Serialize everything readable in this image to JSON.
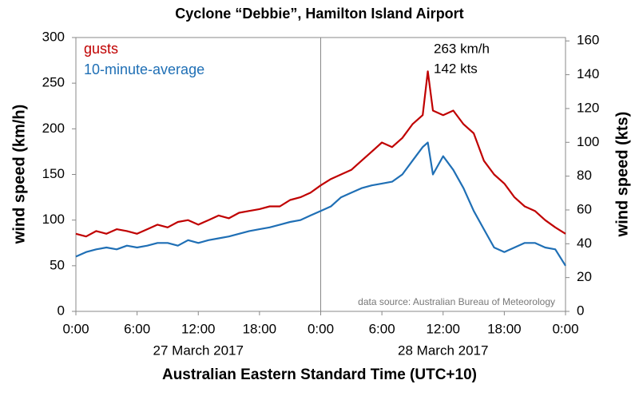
{
  "chart_data": {
    "type": "line",
    "title": "Cyclone “Debbie”, Hamilton Island Airport",
    "xlabel": "Australian Eastern Standard Time (UTC+10)",
    "ylabel": "wind speed (km/h)",
    "y2label": "wind speed (kts)",
    "x_group_labels": [
      "27 March 2017",
      "28 March 2017"
    ],
    "annotations": [
      "263 km/h",
      "142 kts",
      "data source: Australian Bureau of Meteorology"
    ],
    "x": [
      0,
      1,
      2,
      3,
      4,
      5,
      6,
      7,
      8,
      9,
      10,
      11,
      12,
      13,
      14,
      15,
      16,
      17,
      18,
      19,
      20,
      21,
      22,
      23,
      24,
      25,
      26,
      27,
      28,
      29,
      30,
      31,
      32,
      33,
      34,
      34.5,
      35,
      36,
      37,
      38,
      39,
      40,
      41,
      42,
      43,
      44,
      45,
      46,
      47,
      48
    ],
    "series": [
      {
        "name": "gusts",
        "color": "#c00000",
        "values": [
          85,
          82,
          88,
          85,
          90,
          88,
          85,
          90,
          95,
          92,
          98,
          100,
          95,
          100,
          105,
          102,
          108,
          110,
          112,
          115,
          115,
          122,
          125,
          130,
          138,
          145,
          150,
          155,
          165,
          175,
          185,
          180,
          190,
          205,
          215,
          263,
          220,
          215,
          220,
          205,
          195,
          165,
          150,
          140,
          125,
          115,
          110,
          100,
          92,
          85
        ]
      },
      {
        "name": "10-minute-average",
        "color": "#1f6fb5",
        "values": [
          60,
          65,
          68,
          70,
          68,
          72,
          70,
          72,
          75,
          75,
          72,
          78,
          75,
          78,
          80,
          82,
          85,
          88,
          90,
          92,
          95,
          98,
          100,
          105,
          110,
          115,
          125,
          130,
          135,
          138,
          140,
          142,
          150,
          165,
          180,
          185,
          150,
          170,
          155,
          135,
          110,
          90,
          70,
          65,
          70,
          75,
          75,
          70,
          68,
          50
        ]
      }
    ],
    "xlim": [
      0,
      48
    ],
    "xticks": [
      {
        "value": 0,
        "label": "0:00"
      },
      {
        "value": 6,
        "label": "6:00"
      },
      {
        "value": 12,
        "label": "12:00"
      },
      {
        "value": 18,
        "label": "18:00"
      },
      {
        "value": 24,
        "label": "0:00"
      },
      {
        "value": 30,
        "label": "6:00"
      },
      {
        "value": 36,
        "label": "12:00"
      },
      {
        "value": 42,
        "label": "18:00"
      },
      {
        "value": 48,
        "label": "0:00"
      }
    ],
    "ylim": [
      0,
      300
    ],
    "yticks": [
      0,
      50,
      100,
      150,
      200,
      250,
      300
    ],
    "y2lim": [
      0,
      162
    ],
    "y2ticks": [
      0,
      20,
      40,
      60,
      80,
      100,
      120,
      140,
      160
    ]
  }
}
